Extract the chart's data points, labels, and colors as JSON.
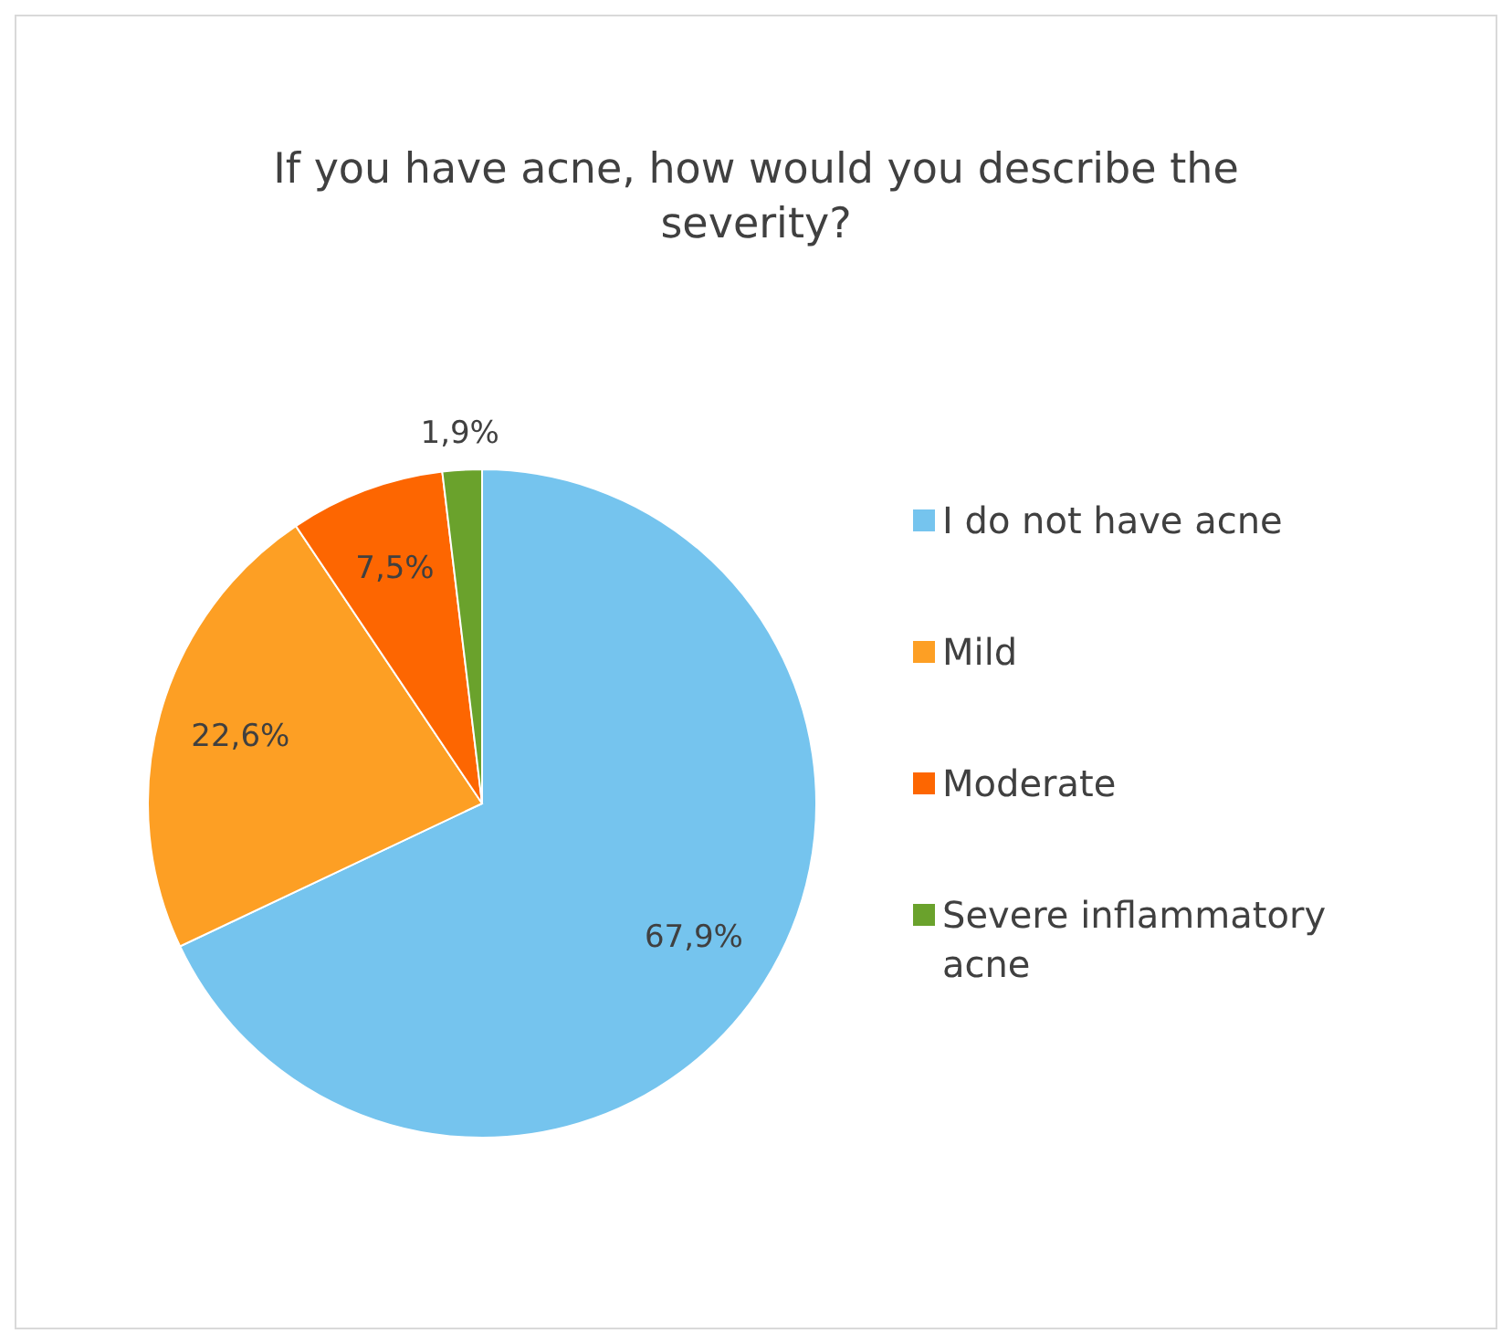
{
  "chart_data": {
    "type": "pie",
    "title": "If you have acne, how would you describe the severity?",
    "categories": [
      "I do not have acne",
      "Mild",
      "Moderate",
      "Severe inflammatory acne"
    ],
    "values": [
      67.9,
      22.6,
      7.5,
      1.9
    ],
    "colors": [
      "#75c4ee",
      "#fd9f24",
      "#fd6601",
      "#6aa22c"
    ],
    "value_labels": [
      "67,9%",
      "22,6%",
      "7,5%",
      "1,9%"
    ],
    "legend": "right"
  }
}
